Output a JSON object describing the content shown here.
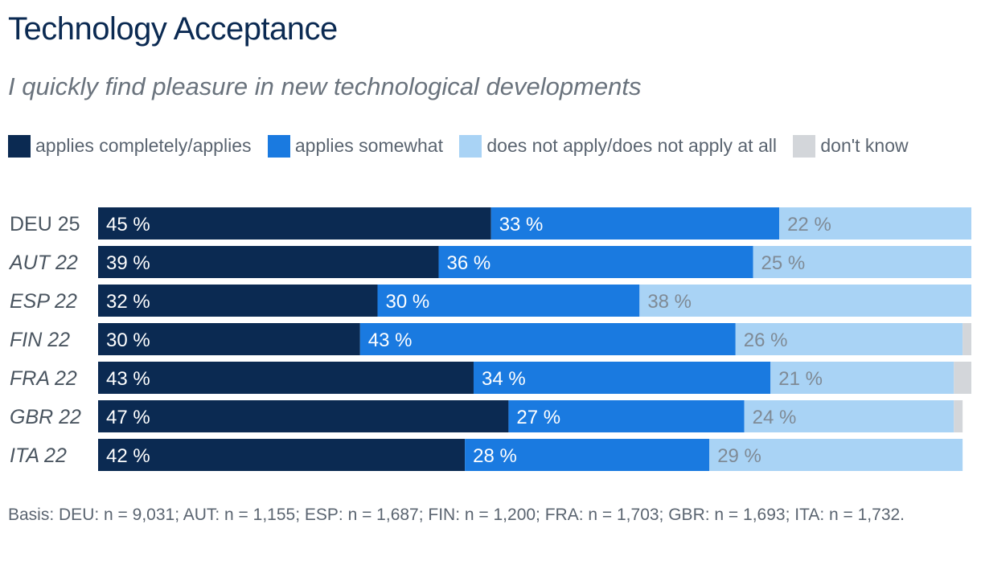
{
  "title": "Technology Acceptance",
  "subtitle": "I quickly find pleasure in new technological developments",
  "legend": [
    {
      "label": "applies completely/applies",
      "color": "#0b2a52"
    },
    {
      "label": "applies somewhat",
      "color": "#1a7ae0"
    },
    {
      "label": "does not apply/does not apply at all",
      "color": "#a9d3f5"
    },
    {
      "label": "don't know",
      "color": "#d3d6da"
    }
  ],
  "chart_data": {
    "type": "bar",
    "orientation": "horizontal",
    "stacked": true,
    "categories": [
      "DEU 25",
      "AUT 22",
      "ESP 22",
      "FIN 22",
      "FRA 22",
      "GBR 22",
      "ITA 22"
    ],
    "category_italic": [
      false,
      true,
      true,
      true,
      true,
      true,
      true
    ],
    "series": [
      {
        "name": "applies completely/applies",
        "color": "#0b2a52",
        "label_color": "#ffffff",
        "values": [
          45,
          39,
          32,
          30,
          43,
          47,
          42
        ]
      },
      {
        "name": "applies somewhat",
        "color": "#1a7ae0",
        "label_color": "#ffffff",
        "values": [
          33,
          36,
          30,
          43,
          34,
          27,
          28
        ]
      },
      {
        "name": "does not apply/does not apply at all",
        "color": "#a9d3f5",
        "label_color": "#7f8a95",
        "values": [
          22,
          25,
          38,
          26,
          21,
          24,
          29
        ]
      },
      {
        "name": "don't know",
        "color": "#d3d6da",
        "label_color": "#7f8a95",
        "values": [
          0,
          1,
          0,
          2,
          2,
          1,
          0
        ]
      }
    ],
    "data_labels": [
      [
        "45 %",
        "39 %",
        "32 %",
        "30 %",
        "43 %",
        "47 %",
        "42 %"
      ],
      [
        "33 %",
        "36 %",
        "30 %",
        "43 %",
        "34 %",
        "27 %",
        "28 %"
      ],
      [
        "22 %",
        "25 %",
        "38 %",
        "26 %",
        "21 %",
        "24 %",
        "29 %"
      ],
      [
        "",
        "",
        "",
        "",
        "",
        "",
        ""
      ]
    ],
    "xlim": [
      0,
      100
    ]
  },
  "footnote": "Basis: DEU: n = 9,031; AUT: n = 1,155; ESP: n = 1,687; FIN: n = 1,200; FRA: n = 1,703; GBR: n = 1,693; ITA: n = 1,732."
}
